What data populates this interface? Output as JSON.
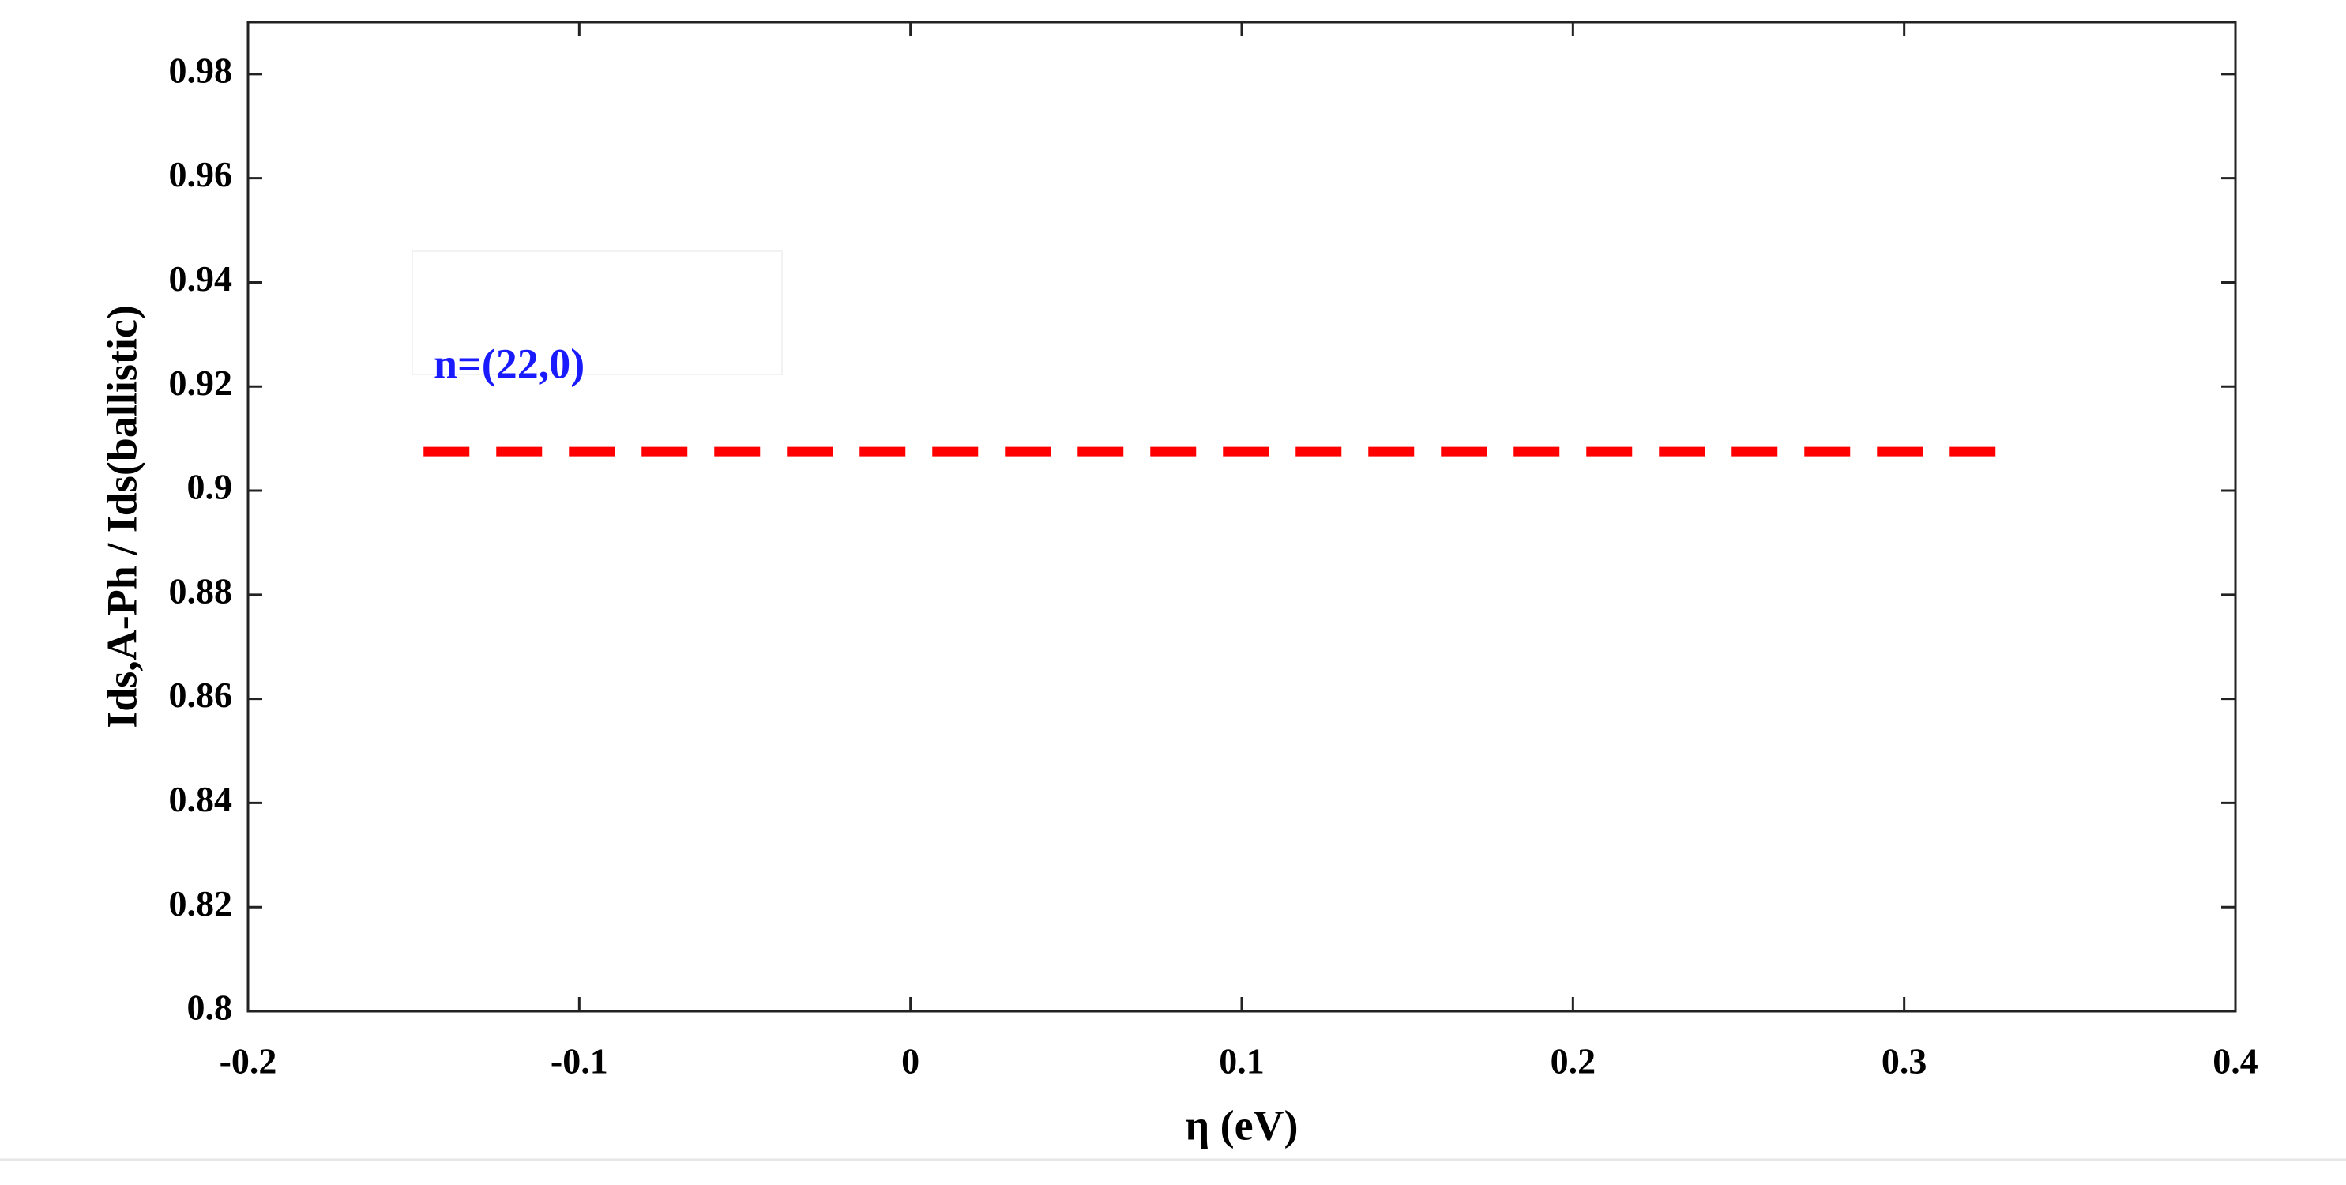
{
  "chart_data": {
    "type": "line",
    "xlabel": "η (eV)",
    "ylabel": "Ids,A-Ph / Ids(ballistic)",
    "x": [
      -0.147,
      0.333
    ],
    "series": [
      {
        "name": "n=(22,0)",
        "color": "#ff0000",
        "values": [
          0.9075,
          0.9075
        ]
      }
    ],
    "xlim": [
      -0.2,
      0.4
    ],
    "xticks": [
      -0.2,
      -0.1,
      0,
      0.1,
      0.2,
      0.3,
      0.4
    ],
    "ylim": [
      0.8,
      0.99
    ],
    "yticks": [
      0.8,
      0.82,
      0.84,
      0.86,
      0.88,
      0.9,
      0.92,
      0.94,
      0.96,
      0.98
    ],
    "grid": false,
    "legend": {
      "position": "upper left",
      "text_color": "#1a1aff"
    }
  }
}
